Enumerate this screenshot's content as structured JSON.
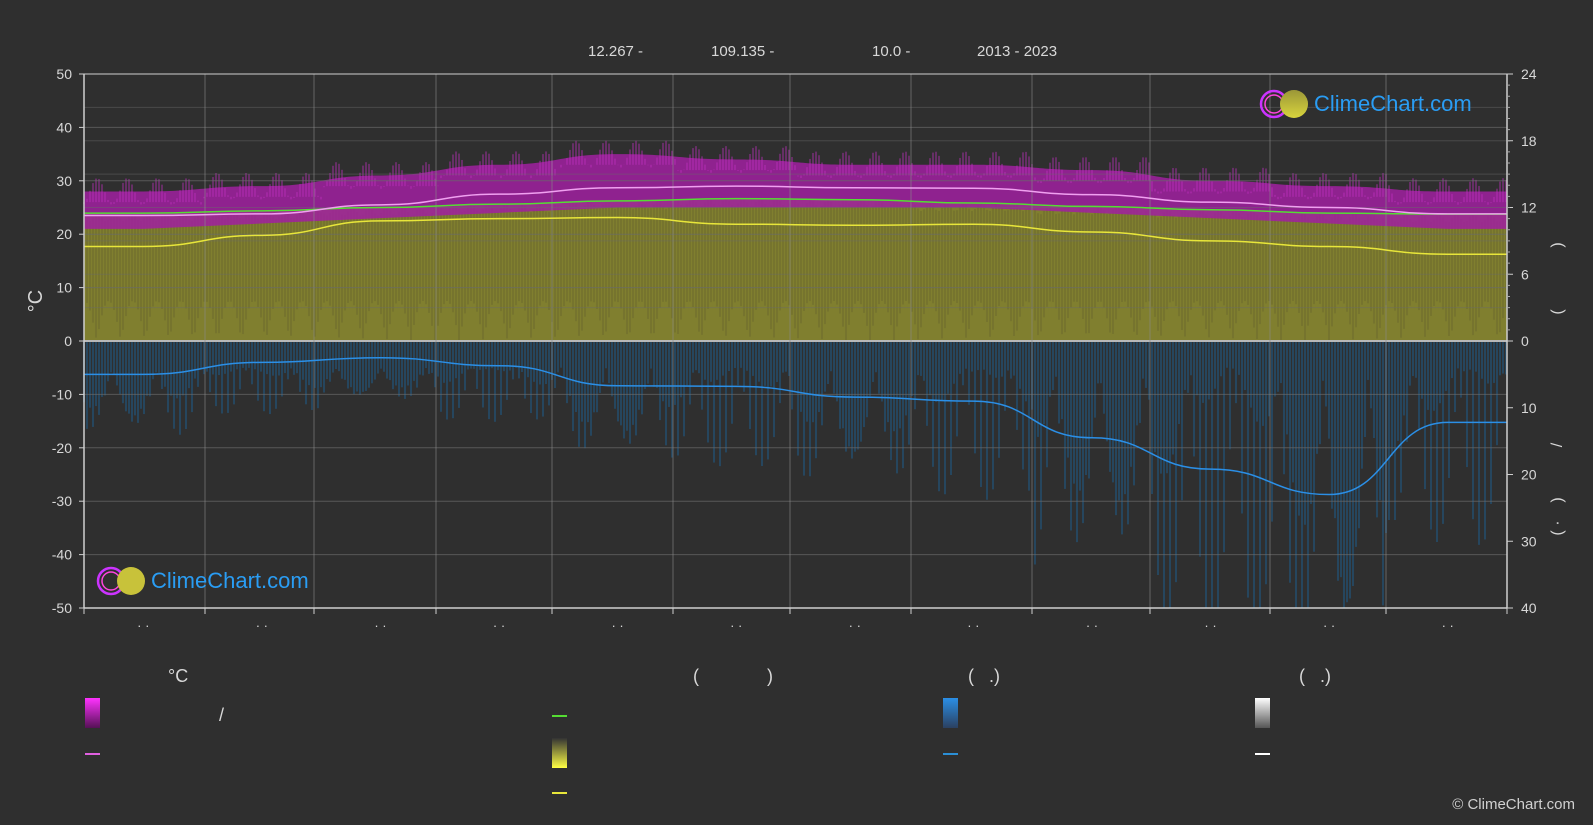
{
  "header": {
    "items": [
      "12.267 -",
      "109.135 -",
      "10.0 -",
      "2013 - 2023"
    ]
  },
  "brand": {
    "name": "ClimeChart.com",
    "copyright": "© ClimeChart.com"
  },
  "colors": {
    "background": "#2f2f2f",
    "grid": "#5a5a5a",
    "magenta": "#e040e0",
    "yellow": "#e8e63a",
    "green": "#55dd33",
    "blue": "#2b8fd6",
    "white": "#ffffff",
    "brand_blue": "#2a9df4"
  },
  "legend": {
    "col1_title": "°C",
    "col1_slash": "/",
    "col2_title_open": "(",
    "col2_title_close": ")",
    "col3_title": "(   .)",
    "col4_title": "(   .)"
  },
  "chart_data": {
    "type": "area",
    "x_ticks": [
      "· ·",
      "· ·",
      "· ·",
      "· ·",
      "· ·",
      "· ·",
      "· ·",
      "· ·",
      "· ·",
      "· ·",
      "· ·",
      "· ·"
    ],
    "y_left": {
      "label": "°C",
      "ticks": [
        50,
        40,
        30,
        20,
        10,
        0,
        -10,
        -20,
        -30,
        -40,
        -50
      ],
      "range": [
        -50,
        50
      ]
    },
    "y_right_top": {
      "ticks": [
        24,
        18,
        12,
        6,
        0
      ],
      "range": [
        0,
        24
      ]
    },
    "y_right_bottom": {
      "ticks": [
        10,
        20,
        30,
        40
      ],
      "range": [
        0,
        40
      ]
    },
    "y_right_label_parts": [
      ")",
      "(",
      "/",
      ")",
      "( ·"
    ],
    "series": [
      {
        "key": "temp_max_mean",
        "color": "#f0a0f0",
        "values": [
          23.5,
          23.8,
          25.5,
          27.5,
          28.7,
          29.0,
          28.7,
          28.6,
          27.4,
          26.0,
          25.0,
          23.8
        ]
      },
      {
        "key": "daylight_hours",
        "axis": "right_top",
        "color": "#55dd33",
        "values": [
          11.5,
          11.7,
          12.0,
          12.3,
          12.6,
          12.8,
          12.7,
          12.4,
          12.1,
          11.8,
          11.5,
          11.4
        ]
      },
      {
        "key": "sunshine_hours",
        "axis": "right_top",
        "color": "#e8e63a",
        "values": [
          8.5,
          9.5,
          10.8,
          11.0,
          11.1,
          10.5,
          10.4,
          10.5,
          9.8,
          9.0,
          8.5,
          7.8
        ]
      },
      {
        "key": "precipitation",
        "axis": "right_bottom",
        "color": "#2b8fd6",
        "values": [
          5.0,
          3.2,
          2.5,
          3.7,
          6.7,
          6.8,
          8.4,
          9.0,
          14.5,
          19.2,
          23.0,
          12.2
        ]
      }
    ],
    "bands": [
      {
        "key": "temp_band",
        "color": "#cc22cc",
        "low": [
          21,
          22,
          23,
          24,
          25,
          25,
          25,
          25,
          24,
          23,
          22,
          21
        ],
        "high": [
          28,
          29,
          31,
          33,
          35,
          34,
          33,
          33,
          32,
          30,
          29,
          28
        ]
      }
    ],
    "grid": true
  }
}
